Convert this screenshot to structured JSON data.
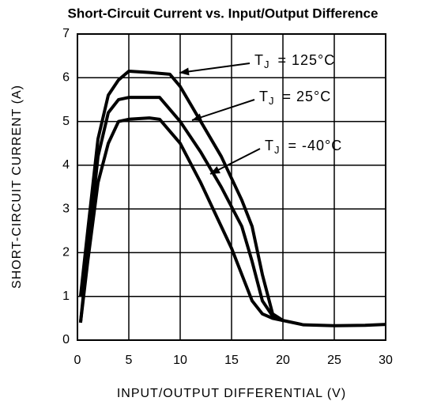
{
  "chart_data": {
    "type": "line",
    "title": "Short-Circuit Current vs. Input/Output Difference",
    "x_label": "INPUT/OUTPUT DIFFERENTIAL (V)",
    "y_label": "SHORT-CIRCUIT CURRENT (A)",
    "xlim": [
      0,
      30
    ],
    "xticks": [
      0,
      5,
      10,
      15,
      20,
      25,
      30
    ],
    "ylim": [
      0,
      7
    ],
    "yticks": [
      0,
      1,
      2,
      3,
      4,
      5,
      6,
      7
    ],
    "grid": true,
    "series": [
      {
        "label_parts": [
          "T",
          "J",
          "= 125°C"
        ],
        "color": "#000000",
        "x": [
          0.3,
          1,
          2,
          3,
          4,
          5,
          7,
          9,
          10,
          12,
          14,
          15,
          16,
          17,
          18,
          19,
          20,
          22,
          25,
          28,
          30
        ],
        "values": [
          1.0,
          2.5,
          4.6,
          5.6,
          5.95,
          6.15,
          6.12,
          6.08,
          5.8,
          5.0,
          4.2,
          3.7,
          3.2,
          2.6,
          1.5,
          0.6,
          0.45,
          0.35,
          0.33,
          0.34,
          0.36
        ]
      },
      {
        "label_parts": [
          "T",
          "J",
          "= 25°C"
        ],
        "color": "#000000",
        "x": [
          0.3,
          1,
          2,
          3,
          4,
          5,
          8,
          10,
          12,
          14,
          16,
          17,
          18,
          19,
          20
        ],
        "values": [
          0.4,
          2.0,
          4.2,
          5.2,
          5.5,
          5.55,
          5.55,
          5.0,
          4.3,
          3.5,
          2.6,
          1.8,
          0.9,
          0.55,
          0.45
        ]
      },
      {
        "label_parts": [
          "T",
          "J",
          "= -40°C"
        ],
        "color": "#000000",
        "x": [
          0.3,
          1,
          2,
          3,
          4,
          5,
          7,
          8,
          10,
          12,
          14,
          15,
          16,
          17,
          18,
          19,
          20
        ],
        "values": [
          0.4,
          1.8,
          3.6,
          4.5,
          5.0,
          5.05,
          5.08,
          5.05,
          4.5,
          3.6,
          2.6,
          2.1,
          1.5,
          0.9,
          0.6,
          0.5,
          0.45
        ]
      }
    ]
  }
}
